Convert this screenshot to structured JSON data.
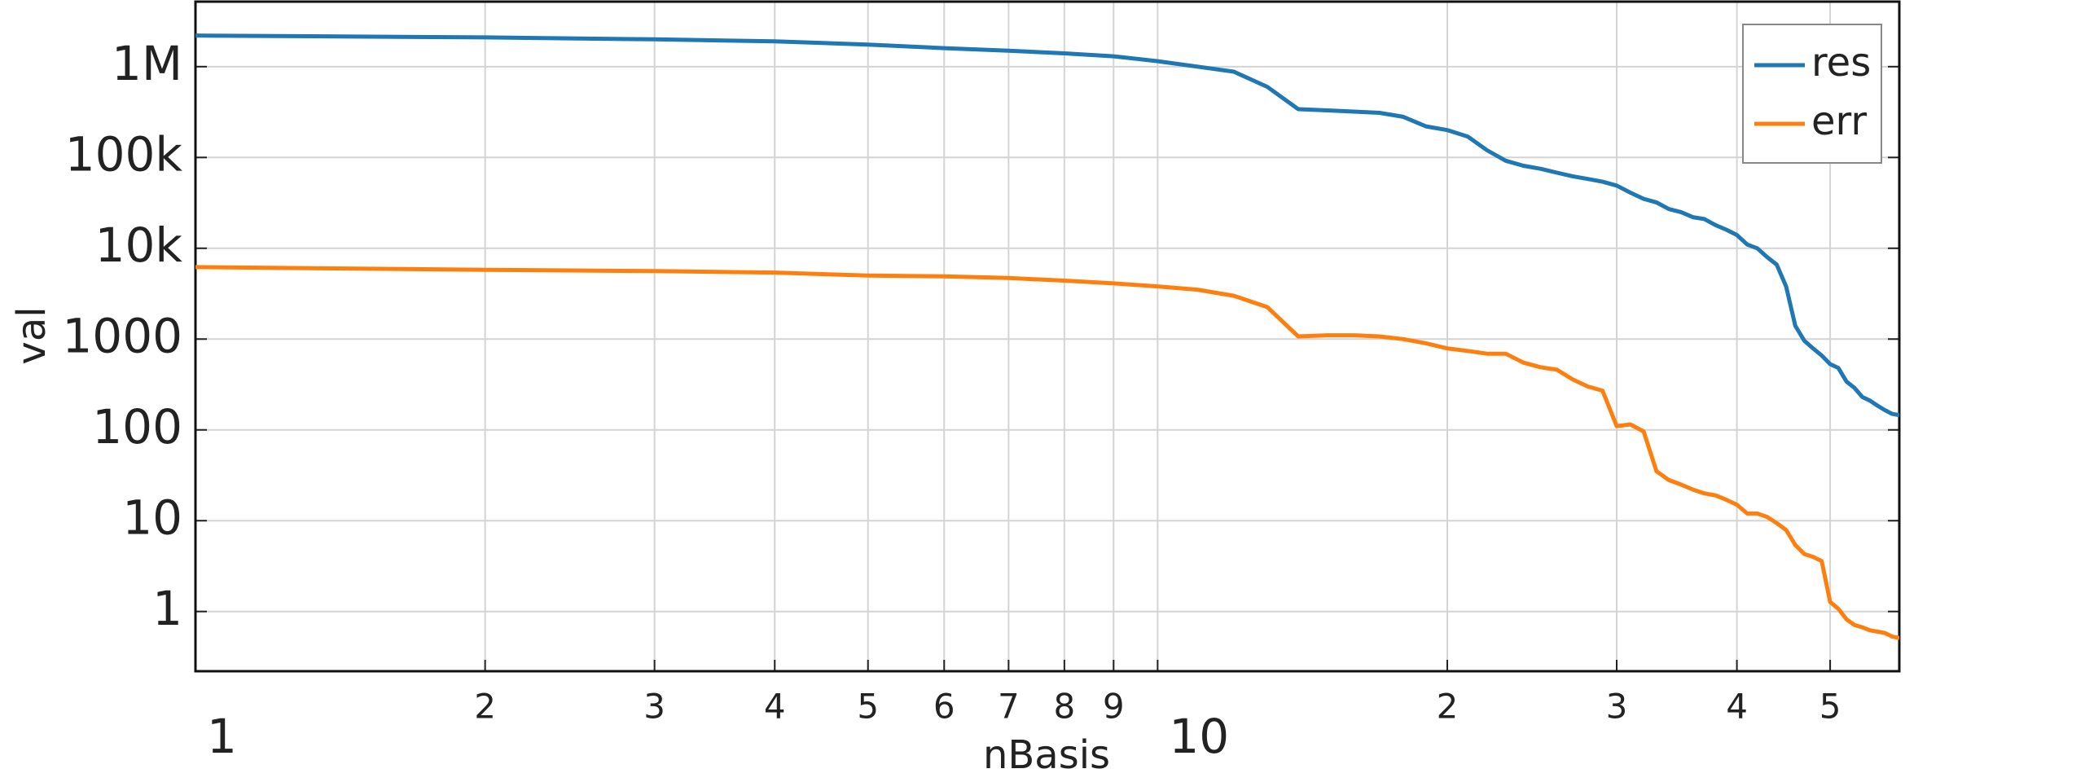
{
  "chart_data": {
    "type": "line",
    "x_label": "nBasis",
    "y_label": "val",
    "x_log": true,
    "y_log": true,
    "grid": true,
    "legend": "upper right",
    "xlim": [
      1,
      59
    ],
    "ylim": [
      0.22,
      5200000
    ],
    "xticks": [
      1,
      {
        "value": 2,
        "label": "2"
      },
      {
        "value": 3,
        "label": "3"
      },
      {
        "value": 4,
        "label": "4"
      },
      {
        "value": 5,
        "label": "5"
      },
      {
        "value": 6,
        "label": "6"
      },
      {
        "value": 7,
        "label": "7"
      },
      {
        "value": 8,
        "label": "8"
      },
      {
        "value": 9,
        "label": "9"
      },
      10,
      {
        "value": 20,
        "label": "2"
      },
      {
        "value": 30,
        "label": "3"
      },
      {
        "value": 40,
        "label": "4"
      },
      {
        "value": 50,
        "label": "5"
      }
    ],
    "yticks": [
      1,
      10,
      100,
      1000,
      {
        "value": 10000,
        "label": "10k"
      },
      {
        "value": 100000,
        "label": "100k"
      },
      {
        "value": 1000000,
        "label": "1M"
      }
    ],
    "x": [
      1,
      2,
      3,
      4,
      5,
      6,
      7,
      8,
      9,
      10,
      11,
      12,
      13,
      14,
      15,
      16,
      17,
      18,
      19,
      20,
      21,
      22,
      23,
      24,
      25,
      26,
      27,
      28,
      29,
      30,
      31,
      32,
      33,
      34,
      35,
      36,
      37,
      38,
      39,
      40,
      41,
      42,
      43,
      44,
      45,
      46,
      47,
      48,
      49,
      50,
      51,
      52,
      53,
      54,
      55,
      56,
      57,
      58,
      59
    ],
    "series": [
      {
        "name": "res",
        "color": "#1f77b4",
        "values": [
          2200000,
          2100000,
          2000000,
          1900000,
          1750000,
          1600000,
          1500000,
          1400000,
          1300000,
          1150000,
          1000000,
          880000,
          600000,
          340000,
          330000,
          320000,
          310000,
          280000,
          220000,
          200000,
          170000,
          120000,
          92000,
          81000,
          75000,
          68000,
          62000,
          58000,
          54000,
          49000,
          41000,
          35000,
          32000,
          27000,
          25000,
          22000,
          21000,
          18000,
          16000,
          14000,
          11000,
          10000,
          8000,
          6600,
          3800,
          1400,
          960,
          790,
          660,
          530,
          480,
          340,
          290,
          230,
          210,
          185,
          165,
          150,
          145
        ]
      },
      {
        "name": "err",
        "color": "#ff7f0e",
        "values": [
          6200,
          5800,
          5600,
          5400,
          5000,
          4900,
          4700,
          4400,
          4100,
          3800,
          3500,
          3000,
          2250,
          1070,
          1100,
          1100,
          1070,
          1000,
          900,
          790,
          740,
          690,
          690,
          550,
          490,
          460,
          360,
          300,
          270,
          110,
          115,
          96,
          35,
          28,
          25,
          22,
          20,
          19,
          17,
          15,
          12,
          12,
          11,
          9.4,
          7.9,
          5.4,
          4.3,
          4.0,
          3.6,
          1.27,
          1.07,
          0.82,
          0.71,
          0.67,
          0.62,
          0.6,
          0.58,
          0.53,
          0.51
        ]
      }
    ]
  }
}
